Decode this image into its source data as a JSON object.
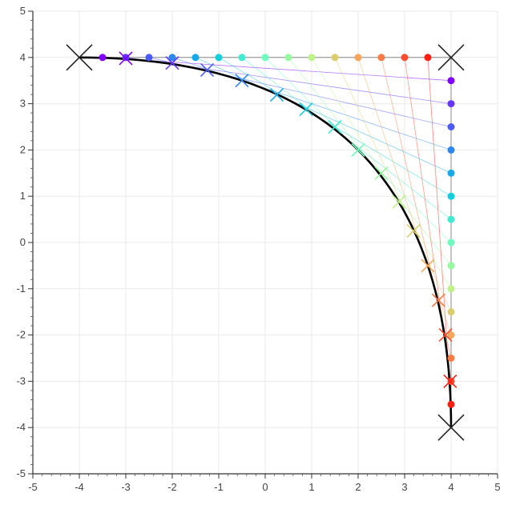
{
  "chart_data": {
    "type": "scatter",
    "title": "",
    "xlabel": "",
    "ylabel": "",
    "xlim": [
      -5,
      5
    ],
    "ylim": [
      -5,
      5
    ],
    "grid": true,
    "xticks": [
      "-5",
      "-4",
      "-3",
      "-2",
      "-1",
      "0",
      "1",
      "2",
      "3",
      "4",
      "5"
    ],
    "yticks": [
      "5",
      "4",
      "3",
      "2",
      "1",
      "0",
      "-1",
      "-2",
      "-3",
      "-4",
      "-5"
    ],
    "tick_values": [
      -5,
      -4,
      -3,
      -2,
      -1,
      0,
      1,
      2,
      3,
      4,
      5
    ],
    "control_points": [
      [
        -4,
        4
      ],
      [
        4,
        4
      ],
      [
        4,
        -4
      ]
    ],
    "top_points": [
      [
        -3.5,
        4
      ],
      [
        -3.0,
        4
      ],
      [
        -2.5,
        4
      ],
      [
        -2.0,
        4
      ],
      [
        -1.5,
        4
      ],
      [
        -1.0,
        4
      ],
      [
        -0.5,
        4
      ],
      [
        0.0,
        4
      ],
      [
        0.5,
        4
      ],
      [
        1.0,
        4
      ],
      [
        1.5,
        4
      ],
      [
        2.0,
        4
      ],
      [
        2.5,
        4
      ],
      [
        3.0,
        4
      ],
      [
        3.5,
        4
      ]
    ],
    "right_points": [
      [
        4,
        3.5
      ],
      [
        4,
        3.0
      ],
      [
        4,
        2.5
      ],
      [
        4,
        2.0
      ],
      [
        4,
        1.5
      ],
      [
        4,
        1.0
      ],
      [
        4,
        0.5
      ],
      [
        4,
        0.0
      ],
      [
        4,
        -0.5
      ],
      [
        4,
        -1.0
      ],
      [
        4,
        -1.5
      ],
      [
        4,
        -2.0
      ],
      [
        4,
        -2.5
      ],
      [
        4,
        -3.0
      ],
      [
        4,
        -3.5
      ]
    ],
    "curve_points": [
      [
        -3.0,
        3.98
      ],
      [
        -2.0,
        3.88
      ],
      [
        -1.25,
        3.73
      ],
      [
        -0.5,
        3.5
      ],
      [
        0.25,
        3.19
      ],
      [
        0.88,
        2.88
      ],
      [
        1.5,
        2.5
      ],
      [
        2.0,
        2.0
      ],
      [
        2.5,
        1.5
      ],
      [
        2.88,
        0.88
      ],
      [
        3.19,
        0.25
      ],
      [
        3.5,
        -0.5
      ],
      [
        3.73,
        -1.25
      ],
      [
        3.88,
        -2.0
      ],
      [
        3.98,
        -3.0
      ]
    ],
    "bezier": {
      "p0": [
        -4,
        4
      ],
      "p1": [
        4,
        4
      ],
      "p2": [
        4,
        -4
      ]
    },
    "colors": [
      "#7f00ff",
      "#6a22fe",
      "#5a44f8",
      "#4666f2",
      "#3384eb",
      "#22a2e3",
      "#10bed9",
      "#00d6cb",
      "#21eab9",
      "#55f8a3",
      "#86fb86",
      "#b4f26c",
      "#dfcc53",
      "#f4a442",
      "#ff7330",
      "#ff3e1c",
      "#ff0000"
    ],
    "series_colors": [
      "#8000ff",
      "#6a2cfe",
      "#4f4dfa",
      "#3470f4",
      "#1996f3",
      "#03b5ec",
      "#1fd0e3",
      "#46e7d5",
      "#67f5c1",
      "#95fba5",
      "#b8f28f",
      "#dad37a",
      "#f5b065",
      "#fd8550",
      "#ff5b3a",
      "#ff2c16"
    ],
    "point_colors": [
      "#8000ff",
      "#6536fd",
      "#4c5bf8",
      "#2e86f0",
      "#18aae8",
      "#16cddc",
      "#41ead0",
      "#6efcbe",
      "#95fa9f",
      "#bff38a",
      "#dbcd6d",
      "#f5a65a",
      "#fd7b45",
      "#ff4b2e",
      "#ff1f12"
    ],
    "cross_color": "#222222",
    "curve_color": "#000000"
  }
}
